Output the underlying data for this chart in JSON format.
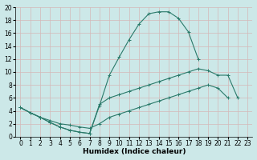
{
  "xlabel": "Humidex (Indice chaleur)",
  "bg_color": "#cce8e8",
  "grid_color": "#b0d4d4",
  "line_color": "#2a7a6a",
  "xlim": [
    -0.5,
    23.5
  ],
  "ylim": [
    0,
    20
  ],
  "xticks": [
    0,
    1,
    2,
    3,
    4,
    5,
    6,
    7,
    8,
    9,
    10,
    11,
    12,
    13,
    14,
    15,
    16,
    17,
    18,
    19,
    20,
    21,
    22,
    23
  ],
  "yticks": [
    0,
    2,
    4,
    6,
    8,
    10,
    12,
    14,
    16,
    18,
    20
  ],
  "curve1_x": [
    0,
    1,
    2,
    3,
    4,
    5,
    6,
    7,
    8,
    9,
    10,
    11,
    12,
    13,
    14,
    15,
    16,
    17,
    18,
    19,
    20,
    21
  ],
  "curve1_y": [
    4.5,
    3.7,
    3.0,
    2.2,
    1.5,
    1.0,
    0.7,
    0.5,
    4.8,
    9.5,
    12.3,
    15.0,
    17.4,
    19.0,
    19.3,
    19.3,
    18.3,
    16.2,
    12.0,
    null,
    null,
    null
  ],
  "curve2_x": [
    0,
    1,
    2,
    3,
    4,
    5,
    6,
    7,
    8,
    9,
    10,
    11,
    12,
    13,
    14,
    15,
    16,
    17,
    18,
    19,
    20,
    21,
    22
  ],
  "curve2_y": [
    4.5,
    3.7,
    3.0,
    2.2,
    1.5,
    1.0,
    0.7,
    0.5,
    5.0,
    6.0,
    6.5,
    7.0,
    7.5,
    8.0,
    8.5,
    9.0,
    9.5,
    10.0,
    10.5,
    10.2,
    9.5,
    9.5,
    6.0
  ],
  "curve3_x": [
    0,
    1,
    2,
    3,
    4,
    5,
    6,
    7,
    8,
    9,
    10,
    11,
    12,
    13,
    14,
    15,
    16,
    17,
    18,
    19,
    20,
    21,
    22,
    23
  ],
  "curve3_y": [
    4.5,
    3.7,
    3.0,
    2.5,
    2.0,
    1.8,
    1.5,
    1.3,
    2.0,
    3.0,
    3.5,
    4.0,
    4.5,
    5.0,
    5.5,
    6.0,
    6.5,
    7.0,
    7.5,
    8.0,
    7.5,
    6.0,
    null,
    null
  ]
}
